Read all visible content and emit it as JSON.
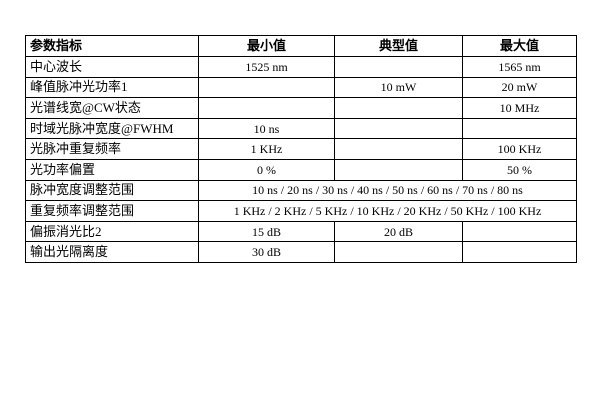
{
  "header": [
    "参数指标",
    "最小值",
    "典型值",
    "最大值"
  ],
  "rows": [
    {
      "param": "中心波长",
      "min": "1525 nm",
      "typ": "",
      "max": "1565 nm"
    },
    {
      "param": "峰值脉冲光功率1",
      "min": "",
      "typ": "10 mW",
      "max": "20 mW"
    },
    {
      "param": "光谱线宽@CW状态",
      "min": "",
      "typ": "",
      "max": "10 MHz"
    },
    {
      "param": "时域光脉冲宽度@FWHM",
      "min": "10 ns",
      "typ": "",
      "max": ""
    },
    {
      "param": "光脉冲重复频率",
      "min": "1 KHz",
      "typ": "",
      "max": "100 KHz"
    },
    {
      "param": "光功率偏置",
      "min": "0 %",
      "typ": "",
      "max": "50 %"
    },
    {
      "param": "脉冲宽度调整范围",
      "span": "10 ns / 20 ns / 30 ns / 40 ns / 50 ns / 60 ns / 70 ns / 80 ns"
    },
    {
      "param": "重复频率调整范围",
      "span": "1 KHz / 2 KHz / 5 KHz / 10 KHz / 20 KHz / 50 KHz / 100 KHz"
    },
    {
      "param": "偏振消光比2",
      "min": "15 dB",
      "typ": "20 dB",
      "max": ""
    },
    {
      "param": "输出光隔离度",
      "min": "30 dB",
      "typ": "",
      "max": ""
    }
  ]
}
